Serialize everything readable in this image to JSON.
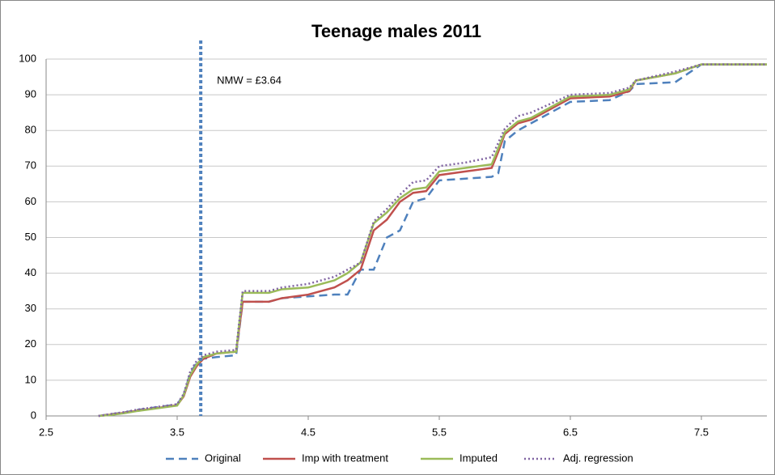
{
  "chart_data": {
    "type": "line",
    "title": "Teenage males 2011",
    "annotation": {
      "x": 3.68,
      "label": "NMW = £3.64",
      "color": "#4f81bd"
    },
    "x": [
      2.9,
      3.0,
      3.1,
      3.2,
      3.3,
      3.4,
      3.5,
      3.55,
      3.6,
      3.65,
      3.7,
      3.8,
      3.95,
      4.0,
      4.2,
      4.3,
      4.5,
      4.7,
      4.8,
      4.9,
      5.0,
      5.1,
      5.2,
      5.3,
      5.4,
      5.5,
      5.7,
      5.9,
      5.95,
      6.0,
      6.1,
      6.2,
      6.5,
      6.8,
      6.95,
      7.0,
      7.3,
      7.5,
      8.0
    ],
    "series": [
      {
        "name": "Original",
        "color": "#4f81bd",
        "dash": "dashed",
        "values": [
          0,
          0.5,
          1,
          1.7,
          2.2,
          2.7,
          3.2,
          6,
          12,
          15,
          16,
          16.5,
          17,
          32,
          32,
          33,
          33.5,
          34,
          34,
          41,
          41,
          50,
          52,
          60,
          61,
          66,
          66.5,
          67,
          68,
          77,
          80,
          82,
          88,
          88.5,
          91,
          93,
          93.5,
          98.5,
          98.5
        ]
      },
      {
        "name": "Imp with treatment",
        "color": "#c0504d",
        "dash": "solid",
        "values": [
          0,
          0.4,
          0.9,
          1.5,
          2,
          2.5,
          3,
          5.5,
          11,
          14,
          16,
          17.5,
          18,
          32,
          32,
          33,
          34,
          36,
          38,
          41,
          52,
          55,
          60,
          62.5,
          63,
          67.5,
          68.5,
          69.5,
          74,
          79,
          82,
          83,
          89,
          89.5,
          91,
          94,
          96,
          98.5,
          98.5
        ]
      },
      {
        "name": "Imputed",
        "color": "#9bbb59",
        "dash": "solid",
        "values": [
          0,
          0.3,
          0.8,
          1.4,
          1.9,
          2.4,
          2.9,
          5.8,
          11.5,
          14.5,
          16.5,
          17.5,
          18,
          34.5,
          34.5,
          35.5,
          36,
          38,
          40,
          43,
          54,
          57,
          61,
          63.5,
          64,
          68.5,
          69.5,
          70.5,
          75,
          79.5,
          82.5,
          83.5,
          89.5,
          90,
          91.5,
          94,
          96,
          98.5,
          98.5
        ]
      },
      {
        "name": "Adj. regression",
        "color": "#8064a2",
        "dash": "dotted",
        "values": [
          0,
          0.6,
          1.1,
          1.8,
          2.3,
          2.8,
          3.3,
          6.2,
          12.5,
          15.5,
          17,
          18,
          18.5,
          35,
          35,
          36,
          37,
          39,
          41,
          43,
          54.5,
          58,
          62,
          65.5,
          66,
          70,
          71,
          72.5,
          76.5,
          80.5,
          84,
          85,
          90,
          90.5,
          92,
          94,
          96.5,
          98.5,
          98.5
        ]
      }
    ],
    "xlim": [
      2.5,
      8
    ],
    "xticks": [
      2.5,
      3.5,
      4.5,
      5.5,
      6.5,
      7.5
    ],
    "ylim": [
      0,
      100
    ],
    "yticks": [
      0,
      10,
      20,
      30,
      40,
      50,
      60,
      70,
      80,
      90,
      100
    ],
    "grid": true,
    "legend": "bottom"
  }
}
